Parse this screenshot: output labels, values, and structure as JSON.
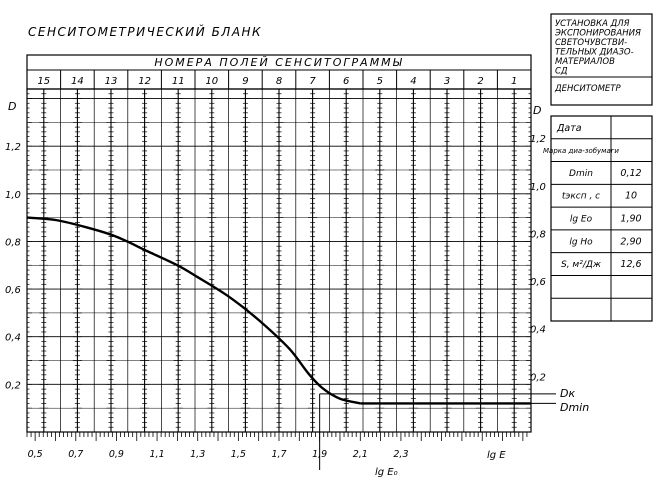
{
  "sheet_title": "СЕНСИТОМЕТРИЧЕСКИЙ БЛАНК",
  "field_header": "НОМЕРА ПОЛЕЙ СЕНСИТОГРАММЫ",
  "field_numbers": [
    "15",
    "14",
    "13",
    "12",
    "11",
    "10",
    "9",
    "8",
    "7",
    "6",
    "5",
    "4",
    "3",
    "2",
    "1"
  ],
  "info_box": {
    "lines": [
      "УСТАНОВКА ДЛЯ",
      "ЭКСПОНИРОВАНИЯ",
      "СВЕТОЧУВСТВИ-",
      "ТЕЛЬНЫХ ДИАЗО-",
      "МАТЕРИАЛОВ",
      "СД"
    ],
    "device": "ДЕНСИТОМЕТР"
  },
  "params_table": {
    "header_label": "Дата",
    "rows": [
      {
        "label": "Марка диа-зобумаги",
        "value": ""
      },
      {
        "label": "Dmin",
        "value": "0,12"
      },
      {
        "label": "tэксп , c",
        "value": "10"
      },
      {
        "label": "lg Eo",
        "value": "1,90"
      },
      {
        "label": "lg Ho",
        "value": "2,90"
      },
      {
        "label": "S, м²/Дж",
        "value": "12,6"
      },
      {
        "label": "",
        "value": ""
      },
      {
        "label": "",
        "value": ""
      }
    ]
  },
  "annotations": {
    "d_axis": "D",
    "lg_e_axis": "lg E",
    "lg_e0": "lg E₀",
    "dk": "Dк",
    "dmin": "Dmin"
  },
  "chart_data": {
    "type": "line",
    "xlabel": "lg E",
    "ylabel": "D",
    "xlim": [
      0.46,
      2.94
    ],
    "ylim": [
      0.0,
      1.44
    ],
    "x_ticks": [
      "0,5",
      "0,7",
      "0,9",
      "1,1",
      "1,3",
      "1,5",
      "1,7",
      "1,9",
      "2,1",
      "2,3"
    ],
    "y_ticks_left": [
      "0,2",
      "0,4",
      "0,6",
      "0,8",
      "1,0",
      "1,2"
    ],
    "y_ticks_right": [
      "0,2",
      "0,4",
      "0,6",
      "0,8",
      "1,0",
      "1,2"
    ],
    "grid": true,
    "series": [
      {
        "values": [
          {
            "x": 0.46,
            "y": 0.9
          },
          {
            "x": 0.6,
            "y": 0.89
          },
          {
            "x": 0.75,
            "y": 0.86
          },
          {
            "x": 0.9,
            "y": 0.82
          },
          {
            "x": 1.05,
            "y": 0.76
          },
          {
            "x": 1.2,
            "y": 0.7
          },
          {
            "x": 1.3,
            "y": 0.65
          },
          {
            "x": 1.45,
            "y": 0.57
          },
          {
            "x": 1.6,
            "y": 0.47
          },
          {
            "x": 1.75,
            "y": 0.35
          },
          {
            "x": 1.85,
            "y": 0.24
          },
          {
            "x": 1.92,
            "y": 0.18
          },
          {
            "x": 2.0,
            "y": 0.14
          },
          {
            "x": 2.1,
            "y": 0.12
          }
        ]
      },
      {
        "values": [
          {
            "x": 2.1,
            "y": 0.12
          },
          {
            "x": 2.94,
            "y": 0.12
          }
        ]
      }
    ],
    "reference_lines": {
      "dk": 0.16,
      "dmin": 0.12,
      "lg_e0": 1.9
    }
  }
}
